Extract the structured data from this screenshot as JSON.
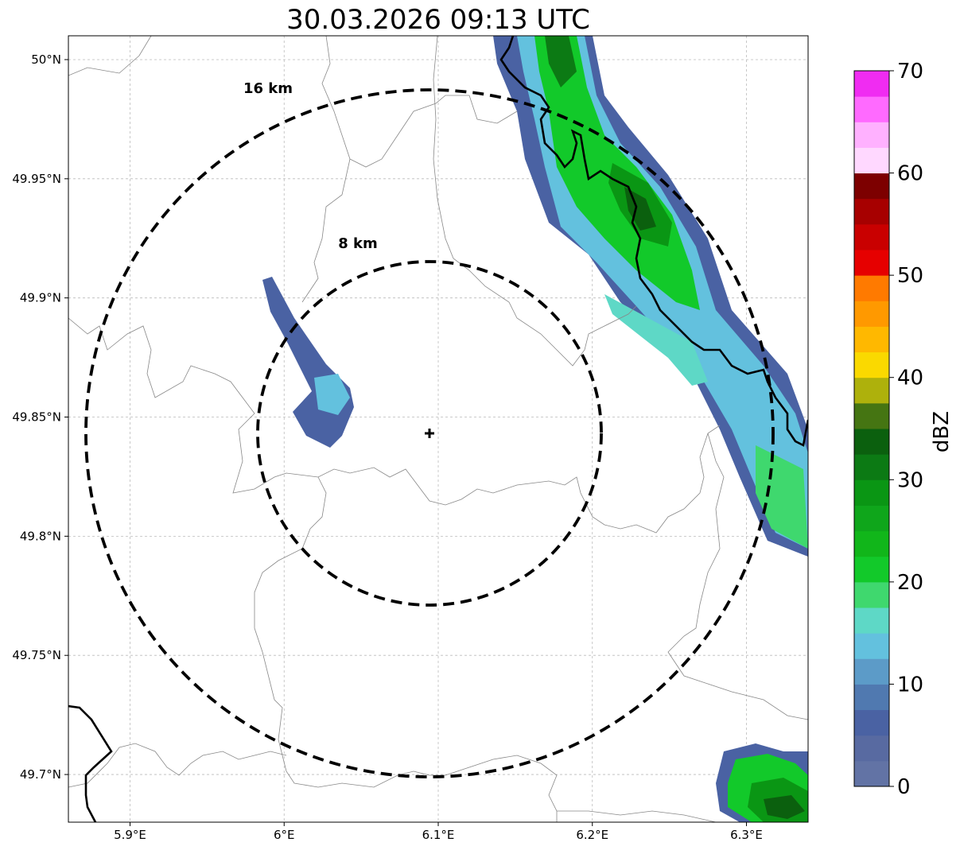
{
  "map": {
    "title": "30.03.2026 09:13 UTC",
    "lon_range": [
      5.86,
      6.34
    ],
    "lat_range": [
      49.68,
      50.01
    ],
    "lon_ticks": [
      {
        "value": 5.9,
        "label": "5.9°E"
      },
      {
        "value": 6.0,
        "label": "6°E"
      },
      {
        "value": 6.1,
        "label": "6.1°E"
      },
      {
        "value": 6.2,
        "label": "6.2°E"
      },
      {
        "value": 6.3,
        "label": "6.3°E"
      }
    ],
    "lat_ticks": [
      {
        "value": 50.0,
        "label": "50°N"
      },
      {
        "value": 49.95,
        "label": "49.95°N"
      },
      {
        "value": 49.9,
        "label": "49.9°N"
      },
      {
        "value": 49.85,
        "label": "49.85°N"
      },
      {
        "value": 49.8,
        "label": "49.8°N"
      },
      {
        "value": 49.75,
        "label": "49.75°N"
      },
      {
        "value": 49.7,
        "label": "49.7°N"
      }
    ],
    "grid": true,
    "radar_center": {
      "lon": 6.095,
      "lat": 49.843
    },
    "range_rings": [
      {
        "radius_km": 8,
        "label": "8 km",
        "label_lon": 6.048,
        "label_lat": 49.923
      },
      {
        "radius_km": 16,
        "label": "16 km",
        "label_lon": 5.99,
        "label_lat": 49.988
      }
    ],
    "colorbar": {
      "label": "dBZ",
      "min": 0,
      "max": 70,
      "ticks": [
        {
          "value": 0,
          "label": "0"
        },
        {
          "value": 10,
          "label": "10"
        },
        {
          "value": 20,
          "label": "20"
        },
        {
          "value": 30,
          "label": "30"
        },
        {
          "value": 40,
          "label": "40"
        },
        {
          "value": 50,
          "label": "50"
        },
        {
          "value": 60,
          "label": "60"
        },
        {
          "value": 70,
          "label": "70"
        }
      ],
      "colors": [
        "#6273a5",
        "#586aa1",
        "#4a62a3",
        "#5079b0",
        "#5c9bc8",
        "#63c1de",
        "#5ed8c6",
        "#3fd86e",
        "#12c92a",
        "#11b61a",
        "#0fa61b",
        "#0a9614",
        "#0c7a14",
        "#0b600e",
        "#457512",
        "#aeb10c",
        "#fad900",
        "#ffb800",
        "#ff9900",
        "#ff7a00",
        "#e60000",
        "#c90000",
        "#a70000",
        "#7d0000",
        "#ffd8ff",
        "#ffb1ff",
        "#ff6aff",
        "#f02cf2"
      ]
    },
    "reflectivity_cells": [
      {
        "lon": 6.185,
        "lat": 50.005,
        "dbz": 30
      },
      {
        "lon": 6.19,
        "lat": 49.995,
        "dbz": 25
      },
      {
        "lon": 6.175,
        "lat": 49.985,
        "dbz": 20
      },
      {
        "lon": 6.17,
        "lat": 49.975,
        "dbz": 18
      },
      {
        "lon": 6.18,
        "lat": 49.96,
        "dbz": 12
      },
      {
        "lon": 6.165,
        "lat": 49.945,
        "dbz": 15
      },
      {
        "lon": 6.225,
        "lat": 49.94,
        "dbz": 34
      },
      {
        "lon": 6.235,
        "lat": 49.93,
        "dbz": 27
      },
      {
        "lon": 6.22,
        "lat": 49.918,
        "dbz": 22
      },
      {
        "lon": 6.245,
        "lat": 49.905,
        "dbz": 17
      },
      {
        "lon": 6.26,
        "lat": 49.89,
        "dbz": 12
      },
      {
        "lon": 6.28,
        "lat": 49.87,
        "dbz": 15
      },
      {
        "lon": 6.3,
        "lat": 49.86,
        "dbz": 10
      },
      {
        "lon": 6.31,
        "lat": 49.84,
        "dbz": 8
      },
      {
        "lon": 6.32,
        "lat": 49.815,
        "dbz": 22
      },
      {
        "lon": 6.33,
        "lat": 49.8,
        "dbz": 17
      },
      {
        "lon": 6.01,
        "lat": 49.86,
        "dbz": 10
      },
      {
        "lon": 6.02,
        "lat": 49.85,
        "dbz": 14
      },
      {
        "lon": 6.31,
        "lat": 49.695,
        "dbz": 24
      },
      {
        "lon": 6.32,
        "lat": 49.685,
        "dbz": 33
      }
    ]
  }
}
